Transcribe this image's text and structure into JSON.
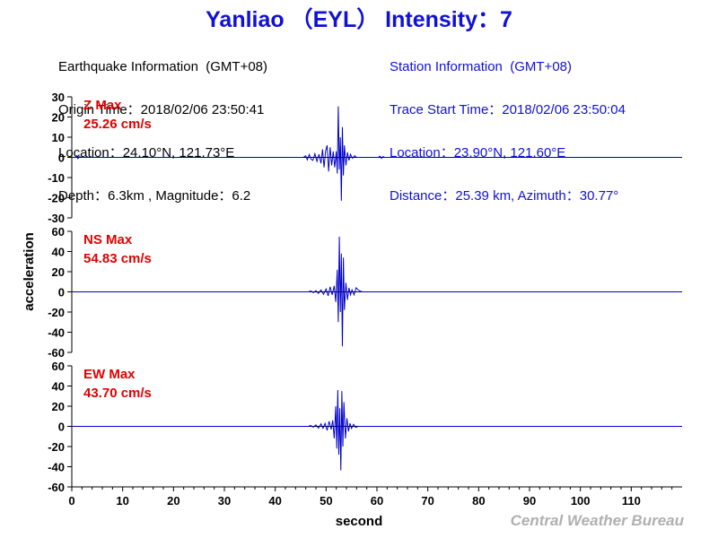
{
  "title": "Yanliao （EYL） Intensity：7",
  "earthquake_info": {
    "heading": "Earthquake Information  (GMT+08)",
    "origin_time": "Origin Time：2018/02/06 23:50:41",
    "location": "Location：24.10°N, 121.73°E",
    "depth_magnitude": "Depth：6.3km , Magnitude：6.2"
  },
  "station_info": {
    "heading": "Station Information  (GMT+08)",
    "trace_start": "Trace Start Time：2018/02/06 23:50:04",
    "location": "Location：23.90°N, 121.60°E",
    "distance": "Distance：25.39 km, Azimuth：30.77°"
  },
  "watermark": "Central Weather Bureau",
  "colors": {
    "title": "#1010d8",
    "trace": "#0000cc",
    "label": "#e00000",
    "station": "#1010d8"
  },
  "chart_data": {
    "type": "line",
    "xlabel": "second",
    "ylabel": "acceleration",
    "xlim": [
      0,
      120
    ],
    "x_ticks": [
      0,
      10,
      20,
      30,
      40,
      50,
      60,
      70,
      80,
      90,
      100,
      110
    ],
    "panels": [
      {
        "name": "Z",
        "label": "Z Max",
        "max_value": "25.26 cm/s",
        "ylim": [
          -30,
          30
        ],
        "y_ticks": [
          30,
          20,
          10,
          0,
          -10,
          -20,
          -30
        ],
        "series": [
          [
            0,
            0
          ],
          [
            0.8,
            0
          ],
          [
            1,
            0.8
          ],
          [
            1.2,
            -0.6
          ],
          [
            1.5,
            0.3
          ],
          [
            2,
            0
          ],
          [
            45.5,
            0
          ],
          [
            46,
            0.8
          ],
          [
            46.3,
            -1.2
          ],
          [
            46.7,
            1.4
          ],
          [
            47,
            -0.8
          ],
          [
            47.4,
            -1.5
          ],
          [
            47.8,
            1.8
          ],
          [
            48.2,
            -2
          ],
          [
            48.6,
            1.5
          ],
          [
            49,
            -3
          ],
          [
            49.3,
            4
          ],
          [
            49.6,
            -5
          ],
          [
            49.9,
            3
          ],
          [
            50.2,
            6
          ],
          [
            50.5,
            -7
          ],
          [
            50.8,
            5
          ],
          [
            51.1,
            -4
          ],
          [
            51.4,
            3
          ],
          [
            51.7,
            -5
          ],
          [
            52,
            3
          ],
          [
            52.2,
            -8
          ],
          [
            52.4,
            25.26
          ],
          [
            52.6,
            -6
          ],
          [
            52.8,
            10
          ],
          [
            53.0,
            -21.5
          ],
          [
            53.2,
            15
          ],
          [
            53.4,
            -9
          ],
          [
            53.6,
            6
          ],
          [
            53.9,
            -4
          ],
          [
            54.2,
            2.5
          ],
          [
            54.5,
            -1.5
          ],
          [
            54.8,
            1.5
          ],
          [
            55.2,
            -0.5
          ],
          [
            55.6,
            0.8
          ],
          [
            56,
            0
          ],
          [
            60.3,
            0
          ],
          [
            60.6,
            0.6
          ],
          [
            60.9,
            -0.5
          ],
          [
            61.2,
            0.4
          ],
          [
            61.5,
            0
          ],
          [
            120,
            0
          ]
        ]
      },
      {
        "name": "NS",
        "label": "NS Max",
        "max_value": "54.83 cm/s",
        "ylim": [
          -60,
          60
        ],
        "y_ticks": [
          60,
          40,
          20,
          0,
          -20,
          -40,
          -60
        ],
        "series": [
          [
            0,
            0
          ],
          [
            46.5,
            0
          ],
          [
            47,
            0.8
          ],
          [
            47.5,
            -0.8
          ],
          [
            48,
            1.2
          ],
          [
            48.5,
            -1.5
          ],
          [
            49,
            2
          ],
          [
            49.5,
            -2.5
          ],
          [
            50,
            3
          ],
          [
            50.4,
            -4
          ],
          [
            50.8,
            5
          ],
          [
            51.2,
            -3
          ],
          [
            51.6,
            6
          ],
          [
            51.9,
            -10
          ],
          [
            52.2,
            22
          ],
          [
            52.4,
            -30
          ],
          [
            52.6,
            54.83
          ],
          [
            52.8,
            -20
          ],
          [
            53,
            38
          ],
          [
            53.2,
            -54
          ],
          [
            53.4,
            34
          ],
          [
            53.6,
            -18
          ],
          [
            53.9,
            9
          ],
          [
            54.2,
            -8
          ],
          [
            54.5,
            4
          ],
          [
            54.8,
            -3
          ],
          [
            55.1,
            2
          ],
          [
            55.5,
            -3
          ],
          [
            55.9,
            4
          ],
          [
            56.3,
            2
          ],
          [
            56.8,
            0.5
          ],
          [
            57.3,
            0
          ],
          [
            120,
            0
          ]
        ]
      },
      {
        "name": "EW",
        "label": "EW Max",
        "max_value": "43.70 cm/s",
        "ylim": [
          -60,
          60
        ],
        "y_ticks": [
          60,
          40,
          20,
          0,
          -20,
          -40,
          -60
        ],
        "series": [
          [
            0,
            0
          ],
          [
            46.5,
            0
          ],
          [
            47,
            0.8
          ],
          [
            47.5,
            -0.8
          ],
          [
            48,
            1.5
          ],
          [
            48.5,
            -1.8
          ],
          [
            49,
            2.5
          ],
          [
            49.4,
            -2
          ],
          [
            49.8,
            3
          ],
          [
            50.2,
            -4
          ],
          [
            50.6,
            5
          ],
          [
            51,
            -3
          ],
          [
            51.3,
            6
          ],
          [
            51.6,
            -12
          ],
          [
            51.9,
            20
          ],
          [
            52.1,
            -22
          ],
          [
            52.3,
            36
          ],
          [
            52.5,
            -28
          ],
          [
            52.7,
            18
          ],
          [
            52.9,
            -43.7
          ],
          [
            53.1,
            35
          ],
          [
            53.3,
            -20
          ],
          [
            53.5,
            24
          ],
          [
            53.8,
            -12
          ],
          [
            54.1,
            8
          ],
          [
            54.4,
            -5
          ],
          [
            54.7,
            3
          ],
          [
            55,
            -2
          ],
          [
            55.4,
            2
          ],
          [
            55.8,
            -1
          ],
          [
            56.3,
            0
          ],
          [
            120,
            0
          ]
        ]
      }
    ]
  }
}
